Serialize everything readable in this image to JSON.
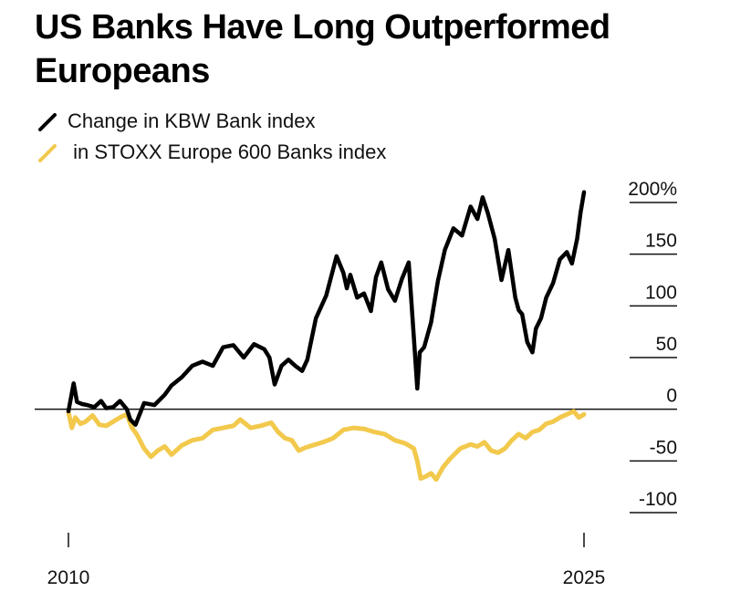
{
  "title": "US Banks Have Long Outperformed Europeans",
  "legend": [
    {
      "label": "Change in KBW Bank index",
      "color": "#000000",
      "icon": "black-line-swatch"
    },
    {
      "label": " in STOXX Europe 600 Banks index",
      "color": "#F2C94C",
      "icon": "yellow-line-swatch"
    }
  ],
  "chart_data": {
    "type": "line",
    "title": "US Banks Have Long Outperformed Europeans",
    "xlabel": "",
    "ylabel": "",
    "xlim": [
      2010,
      2025
    ],
    "ylim": [
      -100,
      200
    ],
    "x_ticks": [
      2010,
      2025
    ],
    "x_tick_labels": [
      "2010",
      "2025"
    ],
    "y_ticks": [
      200,
      150,
      100,
      50,
      0,
      -50,
      -100
    ],
    "y_tick_labels": [
      "200%",
      "150",
      "100",
      "50",
      "0",
      "-50",
      "-100"
    ],
    "zero_line": true,
    "grid": false,
    "legend_position": "top-left",
    "series": [
      {
        "name": "Change in KBW Bank index",
        "color": "#000000",
        "x": [
          2010.0,
          2010.15,
          2010.25,
          2010.4,
          2010.55,
          2010.75,
          2010.95,
          2011.1,
          2011.3,
          2011.5,
          2011.7,
          2011.8,
          2011.95,
          2012.2,
          2012.5,
          2012.8,
          2013.0,
          2013.3,
          2013.6,
          2013.9,
          2014.2,
          2014.5,
          2014.8,
          2015.1,
          2015.4,
          2015.7,
          2015.85,
          2016.0,
          2016.2,
          2016.4,
          2016.6,
          2016.8,
          2016.95,
          2017.2,
          2017.5,
          2017.8,
          2018.0,
          2018.1,
          2018.2,
          2018.4,
          2018.6,
          2018.8,
          2018.95,
          2019.1,
          2019.3,
          2019.5,
          2019.7,
          2019.9,
          2020.05,
          2020.15,
          2020.22,
          2020.35,
          2020.55,
          2020.75,
          2020.95,
          2021.2,
          2021.45,
          2021.7,
          2021.9,
          2022.05,
          2022.2,
          2022.4,
          2022.6,
          2022.8,
          2023.0,
          2023.1,
          2023.2,
          2023.35,
          2023.5,
          2023.6,
          2023.75,
          2023.9,
          2024.1,
          2024.3,
          2024.5,
          2024.65,
          2024.8,
          2024.9,
          2025.0
        ],
        "values": [
          -2,
          25,
          7,
          5,
          4,
          2,
          8,
          1,
          2,
          8,
          0,
          -10,
          -15,
          6,
          4,
          14,
          23,
          31,
          42,
          46,
          42,
          60,
          62,
          50,
          63,
          58,
          50,
          24,
          42,
          48,
          42,
          37,
          48,
          88,
          110,
          148,
          132,
          117,
          130,
          108,
          112,
          95,
          128,
          142,
          116,
          105,
          126,
          142,
          70,
          20,
          55,
          60,
          84,
          124,
          154,
          175,
          168,
          196,
          184,
          205,
          190,
          165,
          125,
          154,
          108,
          96,
          92,
          65,
          55,
          78,
          88,
          108,
          122,
          145,
          152,
          141,
          165,
          190,
          210
        ]
      },
      {
        "name": " in STOXX Europe 600 Banks index",
        "color": "#F2C94C",
        "x": [
          2010.0,
          2010.1,
          2010.2,
          2010.35,
          2010.5,
          2010.7,
          2010.9,
          2011.1,
          2011.3,
          2011.5,
          2011.7,
          2011.85,
          2012.0,
          2012.2,
          2012.4,
          2012.6,
          2012.8,
          2013.0,
          2013.3,
          2013.6,
          2013.9,
          2014.2,
          2014.5,
          2014.8,
          2015.0,
          2015.3,
          2015.6,
          2015.9,
          2016.1,
          2016.3,
          2016.5,
          2016.7,
          2016.9,
          2017.1,
          2017.4,
          2017.7,
          2018.0,
          2018.3,
          2018.6,
          2018.9,
          2019.2,
          2019.5,
          2019.8,
          2020.05,
          2020.15,
          2020.25,
          2020.4,
          2020.55,
          2020.7,
          2020.9,
          2021.1,
          2021.4,
          2021.7,
          2021.9,
          2022.1,
          2022.3,
          2022.5,
          2022.7,
          2022.9,
          2023.1,
          2023.3,
          2023.5,
          2023.7,
          2023.9,
          2024.1,
          2024.3,
          2024.5,
          2024.7,
          2024.85,
          2025.0
        ],
        "values": [
          -3,
          -18,
          -8,
          -14,
          -12,
          -6,
          -15,
          -16,
          -12,
          -8,
          -5,
          -18,
          -25,
          -38,
          -46,
          -40,
          -36,
          -44,
          -35,
          -30,
          -28,
          -20,
          -18,
          -16,
          -10,
          -18,
          -16,
          -13,
          -22,
          -28,
          -30,
          -40,
          -37,
          -35,
          -32,
          -28,
          -20,
          -18,
          -19,
          -22,
          -24,
          -30,
          -33,
          -38,
          -50,
          -67,
          -65,
          -62,
          -68,
          -56,
          -48,
          -38,
          -34,
          -36,
          -32,
          -40,
          -42,
          -38,
          -30,
          -24,
          -28,
          -22,
          -20,
          -14,
          -12,
          -8,
          -5,
          -2,
          -8,
          -5
        ]
      }
    ]
  }
}
